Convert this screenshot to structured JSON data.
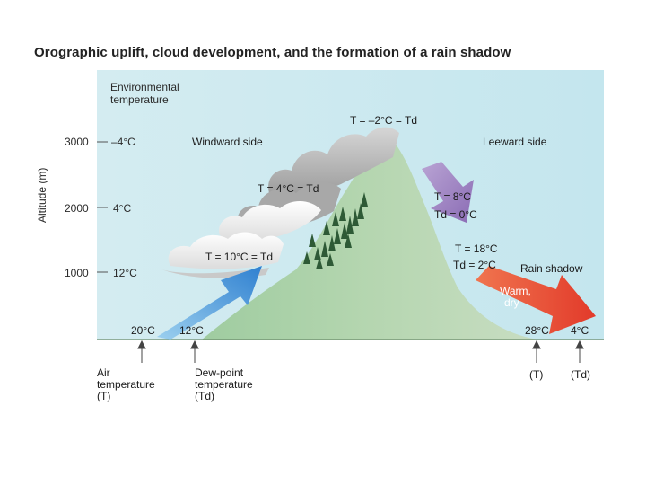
{
  "title": "Orographic uplift, cloud development, and the formation of a rain shadow",
  "y_axis": {
    "label": "Altitude (m)",
    "ticks": [
      "3000",
      "2000",
      "1000"
    ]
  },
  "environmental": {
    "header": "Environmental temperature",
    "header_line1": "Environmental",
    "header_line2": "temperature",
    "temps": [
      "–4°C",
      "4°C",
      "12°C"
    ]
  },
  "labels": {
    "windward": "Windward side",
    "leeward": "Leeward side",
    "rain_shadow": "Rain shadow",
    "warm_dry_line1": "Warm,",
    "warm_dry_line2": "dry"
  },
  "equations": {
    "summit": "T = –2°C = Td",
    "mid_windward": "T = 4°C = Td",
    "low_windward": "T = 10°C = Td",
    "lee_upper_T": "T = 8°C",
    "lee_upper_Td": "Td = 0°C",
    "lee_lower_T": "T = 18°C",
    "lee_lower_Td": "Td = 2°C"
  },
  "ground_values": {
    "left_air": "20°C",
    "left_dew": "12°C",
    "right_air": "28°C",
    "right_dew": "4°C"
  },
  "bottom_labels": {
    "air_line1": "Air",
    "air_line2": "temperature",
    "air_line3": "(T)",
    "dew_line1": "Dew-point",
    "dew_line2": "temperature",
    "dew_line3": "(Td)",
    "right_T": "(T)",
    "right_Td": "(Td)"
  },
  "colors": {
    "sky": "#cde9f0",
    "mountain": "#a9cfa6",
    "cloud": "#bfbfbf",
    "arrow_up": "#3d8fd6",
    "arrow_lee_purple": "#9a7fc0",
    "arrow_warm_red": "#e8452c"
  }
}
